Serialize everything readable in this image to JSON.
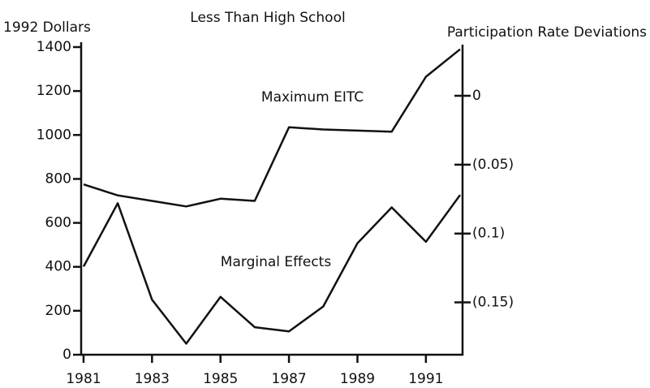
{
  "chart_data": {
    "type": "line",
    "title": "Less Than High School",
    "y_label": "1992 Dollars",
    "y2_label": "Participation Rate Deviations",
    "x": [
      1981,
      1982,
      1983,
      1984,
      1985,
      1986,
      1987,
      1988,
      1989,
      1990,
      1991,
      1992
    ],
    "series": [
      {
        "name": "Maximum EITC",
        "color": "#111111",
        "axis": "y",
        "values": [
          775,
          725,
          700,
          675,
          710,
          700,
          1035,
          1025,
          1020,
          1015,
          1265,
          1390
        ]
      },
      {
        "name": "Marginal Effects",
        "color": "#111111",
        "axis": "y2",
        "values": [
          -0.124,
          -0.078,
          -0.148,
          -0.18,
          -0.146,
          -0.168,
          -0.171,
          -0.153,
          -0.107,
          -0.081,
          -0.106,
          -0.072
        ]
      }
    ],
    "xlim": [
      1980.93,
      1992.07
    ],
    "xticks": [
      1981,
      1983,
      1985,
      1987,
      1989,
      1991
    ],
    "ylim": [
      0,
      1400
    ],
    "yticks": [
      0,
      200,
      400,
      600,
      800,
      1000,
      1200,
      1400
    ],
    "y2lim": [
      -0.188,
      0.0354
    ],
    "y2ticks": [
      0,
      {
        "value": -0.05,
        "label": "(0.05)"
      },
      {
        "value": -0.1,
        "label": "(0.1)"
      },
      {
        "value": -0.15,
        "label": "(0.15)"
      }
    ],
    "grid": false
  }
}
